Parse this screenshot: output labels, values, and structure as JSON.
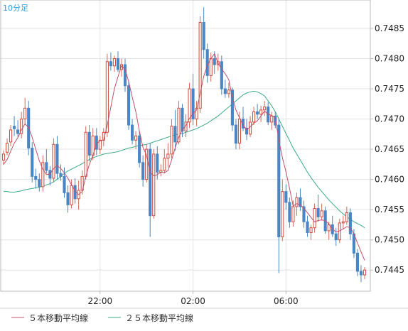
{
  "chart_data": {
    "type": "candlestick",
    "timeframe_label": "10分足",
    "x_tick_labels": [
      "22:00",
      "02:00",
      "06:00"
    ],
    "y_tick_labels": [
      "0.7445",
      "0.7450",
      "0.7455",
      "0.7460",
      "0.7465",
      "0.7470",
      "0.7475",
      "0.7480",
      "0.7485"
    ],
    "y_ticks": [
      0.7445,
      0.745,
      0.7455,
      0.746,
      0.7465,
      0.747,
      0.7475,
      0.748,
      0.7485
    ],
    "ylim": [
      0.74415,
      0.74897
    ],
    "grid": true,
    "legend_position": "bottom-left",
    "series": [
      {
        "name": "OHLC",
        "candles": [
          [
            0.74632,
            0.74648,
            0.74624,
            0.74642
          ],
          [
            0.74645,
            0.74668,
            0.7464,
            0.7466
          ],
          [
            0.74662,
            0.7469,
            0.74655,
            0.74682
          ],
          [
            0.74688,
            0.74705,
            0.74672,
            0.74684
          ],
          [
            0.74682,
            0.74698,
            0.7467,
            0.74676
          ],
          [
            0.74676,
            0.74712,
            0.74668,
            0.747
          ],
          [
            0.747,
            0.74735,
            0.7469,
            0.74718
          ],
          [
            0.74718,
            0.7473,
            0.7464,
            0.74652
          ],
          [
            0.74652,
            0.74662,
            0.74595,
            0.74605
          ],
          [
            0.74605,
            0.74618,
            0.74585,
            0.746
          ],
          [
            0.746,
            0.7461,
            0.7458,
            0.74588
          ],
          [
            0.74588,
            0.7464,
            0.7458,
            0.74628
          ],
          [
            0.74628,
            0.7465,
            0.7461,
            0.74615
          ],
          [
            0.74615,
            0.74622,
            0.7459,
            0.74602
          ],
          [
            0.74602,
            0.74668,
            0.74595,
            0.74658
          ],
          [
            0.74658,
            0.74672,
            0.746,
            0.7461
          ],
          [
            0.7461,
            0.74625,
            0.74598,
            0.74605
          ],
          [
            0.74605,
            0.7462,
            0.7457,
            0.74578
          ],
          [
            0.74578,
            0.7459,
            0.74545,
            0.74558
          ],
          [
            0.74558,
            0.746,
            0.74552,
            0.7459
          ],
          [
            0.7459,
            0.74602,
            0.7456,
            0.74568
          ],
          [
            0.74568,
            0.74598,
            0.7455,
            0.74582
          ],
          [
            0.74582,
            0.74615,
            0.74575,
            0.74605
          ],
          [
            0.74605,
            0.74688,
            0.746,
            0.74678
          ],
          [
            0.74678,
            0.7469,
            0.7463,
            0.7464
          ],
          [
            0.7464,
            0.74685,
            0.74632,
            0.74672
          ],
          [
            0.74672,
            0.74685,
            0.7464,
            0.7465
          ],
          [
            0.7465,
            0.74672,
            0.74642,
            0.74665
          ],
          [
            0.74665,
            0.74685,
            0.74655,
            0.74678
          ],
          [
            0.74678,
            0.74808,
            0.7467,
            0.74795
          ],
          [
            0.74795,
            0.7481,
            0.7478,
            0.74788
          ],
          [
            0.74788,
            0.74805,
            0.74778,
            0.748
          ],
          [
            0.748,
            0.74812,
            0.74778,
            0.74782
          ],
          [
            0.74782,
            0.748,
            0.7477,
            0.7479
          ],
          [
            0.7479,
            0.748,
            0.74745,
            0.74755
          ],
          [
            0.74755,
            0.74762,
            0.74682,
            0.7469
          ],
          [
            0.7469,
            0.747,
            0.74658,
            0.74665
          ],
          [
            0.74665,
            0.7468,
            0.7465,
            0.74672
          ],
          [
            0.74672,
            0.7468,
            0.7462,
            0.74628
          ],
          [
            0.74628,
            0.7464,
            0.74588,
            0.746
          ],
          [
            0.746,
            0.74658,
            0.74595,
            0.7465
          ],
          [
            0.7465,
            0.7466,
            0.74505,
            0.7454
          ],
          [
            0.7454,
            0.7465,
            0.74535,
            0.74642
          ],
          [
            0.74642,
            0.74655,
            0.746,
            0.74612
          ],
          [
            0.74612,
            0.74625,
            0.74605,
            0.74615
          ],
          [
            0.74615,
            0.7465,
            0.7461,
            0.74635
          ],
          [
            0.74635,
            0.7466,
            0.7462,
            0.74642
          ],
          [
            0.74642,
            0.747,
            0.74635,
            0.74688
          ],
          [
            0.74688,
            0.74715,
            0.74648,
            0.74662
          ],
          [
            0.74662,
            0.7473,
            0.74658,
            0.74718
          ],
          [
            0.74718,
            0.74725,
            0.7467,
            0.7468
          ],
          [
            0.7468,
            0.74708,
            0.7467,
            0.74695
          ],
          [
            0.74695,
            0.7476,
            0.74685,
            0.7475
          ],
          [
            0.7475,
            0.74775,
            0.7469,
            0.747
          ],
          [
            0.747,
            0.7473,
            0.74688,
            0.74718
          ],
          [
            0.74718,
            0.7487,
            0.7471,
            0.7486
          ],
          [
            0.7486,
            0.74885,
            0.748,
            0.74815
          ],
          [
            0.74815,
            0.74825,
            0.7476,
            0.74772
          ],
          [
            0.74772,
            0.7481,
            0.74762,
            0.748
          ],
          [
            0.748,
            0.74812,
            0.74775,
            0.7479
          ],
          [
            0.7479,
            0.74808,
            0.7478,
            0.74795
          ],
          [
            0.74795,
            0.74805,
            0.7474,
            0.7475
          ],
          [
            0.7475,
            0.74765,
            0.74735,
            0.74742
          ],
          [
            0.74742,
            0.7476,
            0.74735,
            0.74748
          ],
          [
            0.74748,
            0.74752,
            0.7468,
            0.7469
          ],
          [
            0.7469,
            0.747,
            0.7465,
            0.7466
          ],
          [
            0.7466,
            0.74712,
            0.7465,
            0.747
          ],
          [
            0.747,
            0.7472,
            0.7468,
            0.74685
          ],
          [
            0.74685,
            0.747,
            0.74665,
            0.74675
          ],
          [
            0.74675,
            0.74705,
            0.7467,
            0.74695
          ],
          [
            0.74695,
            0.7472,
            0.7469,
            0.74712
          ],
          [
            0.74712,
            0.74725,
            0.747,
            0.74708
          ],
          [
            0.74708,
            0.74722,
            0.74695,
            0.74715
          ],
          [
            0.74715,
            0.7473,
            0.74705,
            0.7472
          ],
          [
            0.7472,
            0.74728,
            0.7469,
            0.74695
          ],
          [
            0.74695,
            0.74712,
            0.74682,
            0.74705
          ],
          [
            0.74705,
            0.74712,
            0.74685,
            0.7469
          ],
          [
            0.7469,
            0.747,
            0.74445,
            0.74505
          ],
          [
            0.74505,
            0.746,
            0.74498,
            0.7458
          ],
          [
            0.7458,
            0.74592,
            0.7455,
            0.74562
          ],
          [
            0.74562,
            0.7457,
            0.7452,
            0.7453
          ],
          [
            0.7453,
            0.74565,
            0.74522,
            0.74555
          ],
          [
            0.74555,
            0.74578,
            0.7454,
            0.7457
          ],
          [
            0.7457,
            0.74585,
            0.74548,
            0.74555
          ],
          [
            0.74555,
            0.74565,
            0.7452,
            0.7453
          ],
          [
            0.7453,
            0.7454,
            0.74505,
            0.74512
          ],
          [
            0.74512,
            0.74525,
            0.745,
            0.7452
          ],
          [
            0.7452,
            0.7456,
            0.74512,
            0.74552
          ],
          [
            0.74552,
            0.74575,
            0.7453,
            0.74538
          ],
          [
            0.74538,
            0.7456,
            0.74532,
            0.74548
          ],
          [
            0.74548,
            0.74555,
            0.7451,
            0.74515
          ],
          [
            0.74515,
            0.7453,
            0.745,
            0.74525
          ],
          [
            0.74525,
            0.7454,
            0.74505,
            0.7451
          ],
          [
            0.7451,
            0.7452,
            0.7449,
            0.745
          ],
          [
            0.745,
            0.74535,
            0.74495,
            0.74528
          ],
          [
            0.74528,
            0.7454,
            0.74518,
            0.7453
          ],
          [
            0.7453,
            0.74555,
            0.74525,
            0.74545
          ],
          [
            0.74545,
            0.74552,
            0.745,
            0.7451
          ],
          [
            0.7451,
            0.74518,
            0.7447,
            0.74478
          ],
          [
            0.74478,
            0.74485,
            0.7444,
            0.74448
          ],
          [
            0.74448,
            0.74458,
            0.7443,
            0.74442
          ],
          [
            0.74442,
            0.74455,
            0.74435,
            0.7445
          ]
        ]
      },
      {
        "name": "５本移動平均線",
        "color": "#c0506a",
        "values": [
          0.74625,
          0.74633,
          0.74647,
          0.7466,
          0.74669,
          0.74682,
          0.74692,
          0.74686,
          0.7467,
          0.7465,
          0.74631,
          0.74617,
          0.74608,
          0.74609,
          0.74618,
          0.74623,
          0.74618,
          0.74611,
          0.74602,
          0.74591,
          0.74581,
          0.74575,
          0.7458,
          0.74605,
          0.74625,
          0.7464,
          0.74659,
          0.74664,
          0.74665,
          0.7469,
          0.7472,
          0.7475,
          0.7477,
          0.74788,
          0.74782,
          0.74762,
          0.74736,
          0.74712,
          0.7468,
          0.74653,
          0.7464,
          0.74612,
          0.74606,
          0.74608,
          0.74612,
          0.74611,
          0.74615,
          0.74632,
          0.74652,
          0.7467,
          0.74682,
          0.74689,
          0.74701,
          0.74709,
          0.74715,
          0.74742,
          0.74771,
          0.74789,
          0.748,
          0.74808,
          0.74792,
          0.74783,
          0.74775,
          0.74765,
          0.74736,
          0.74715,
          0.74702,
          0.7469,
          0.74682,
          0.74687,
          0.74693,
          0.74697,
          0.74705,
          0.74713,
          0.74708,
          0.74706,
          0.74702,
          0.74665,
          0.74636,
          0.74613,
          0.74585,
          0.74556,
          0.7456,
          0.74558,
          0.74552,
          0.74545,
          0.74537,
          0.7453,
          0.74532,
          0.74533,
          0.74532,
          0.74526,
          0.74518,
          0.74513,
          0.74515,
          0.74518,
          0.74522,
          0.7452,
          0.7451,
          0.74495,
          0.7448,
          0.74466
        ]
      },
      {
        "name": "２５本移動平均線",
        "color": "#3aaa88",
        "values": [
          0.7458,
          0.7458,
          0.74579,
          0.74579,
          0.7458,
          0.74581,
          0.74583,
          0.74584,
          0.74585,
          0.74586,
          0.74587,
          0.74589,
          0.74591,
          0.74593,
          0.74596,
          0.746,
          0.74605,
          0.7461,
          0.74614,
          0.74617,
          0.7462,
          0.74623,
          0.74626,
          0.7463,
          0.74633,
          0.74636,
          0.74638,
          0.7464,
          0.74642,
          0.74643,
          0.74644,
          0.74645,
          0.74646,
          0.74648,
          0.7465,
          0.74652,
          0.74653,
          0.74655,
          0.74656,
          0.74657,
          0.74658,
          0.7466,
          0.74662,
          0.74664,
          0.74666,
          0.74668,
          0.7467,
          0.74672,
          0.74674,
          0.74675,
          0.74676,
          0.74678,
          0.7468,
          0.74682,
          0.74684,
          0.74687,
          0.7469,
          0.74693,
          0.74697,
          0.74701,
          0.74705,
          0.7471,
          0.74715,
          0.7472,
          0.74725,
          0.7473,
          0.74735,
          0.7474,
          0.74743,
          0.74745,
          0.74746,
          0.74745,
          0.74742,
          0.74738,
          0.7473,
          0.74722,
          0.74712,
          0.747,
          0.74688,
          0.74676,
          0.74664,
          0.74652,
          0.74642,
          0.74632,
          0.74622,
          0.74612,
          0.74603,
          0.74595,
          0.74587,
          0.7458,
          0.74573,
          0.74566,
          0.7456,
          0.74554,
          0.74548,
          0.74543,
          0.74538,
          0.74534,
          0.7453,
          0.74527,
          0.74524,
          0.7452
        ]
      }
    ],
    "x_tick_indices": [
      27,
      53,
      79
    ]
  }
}
